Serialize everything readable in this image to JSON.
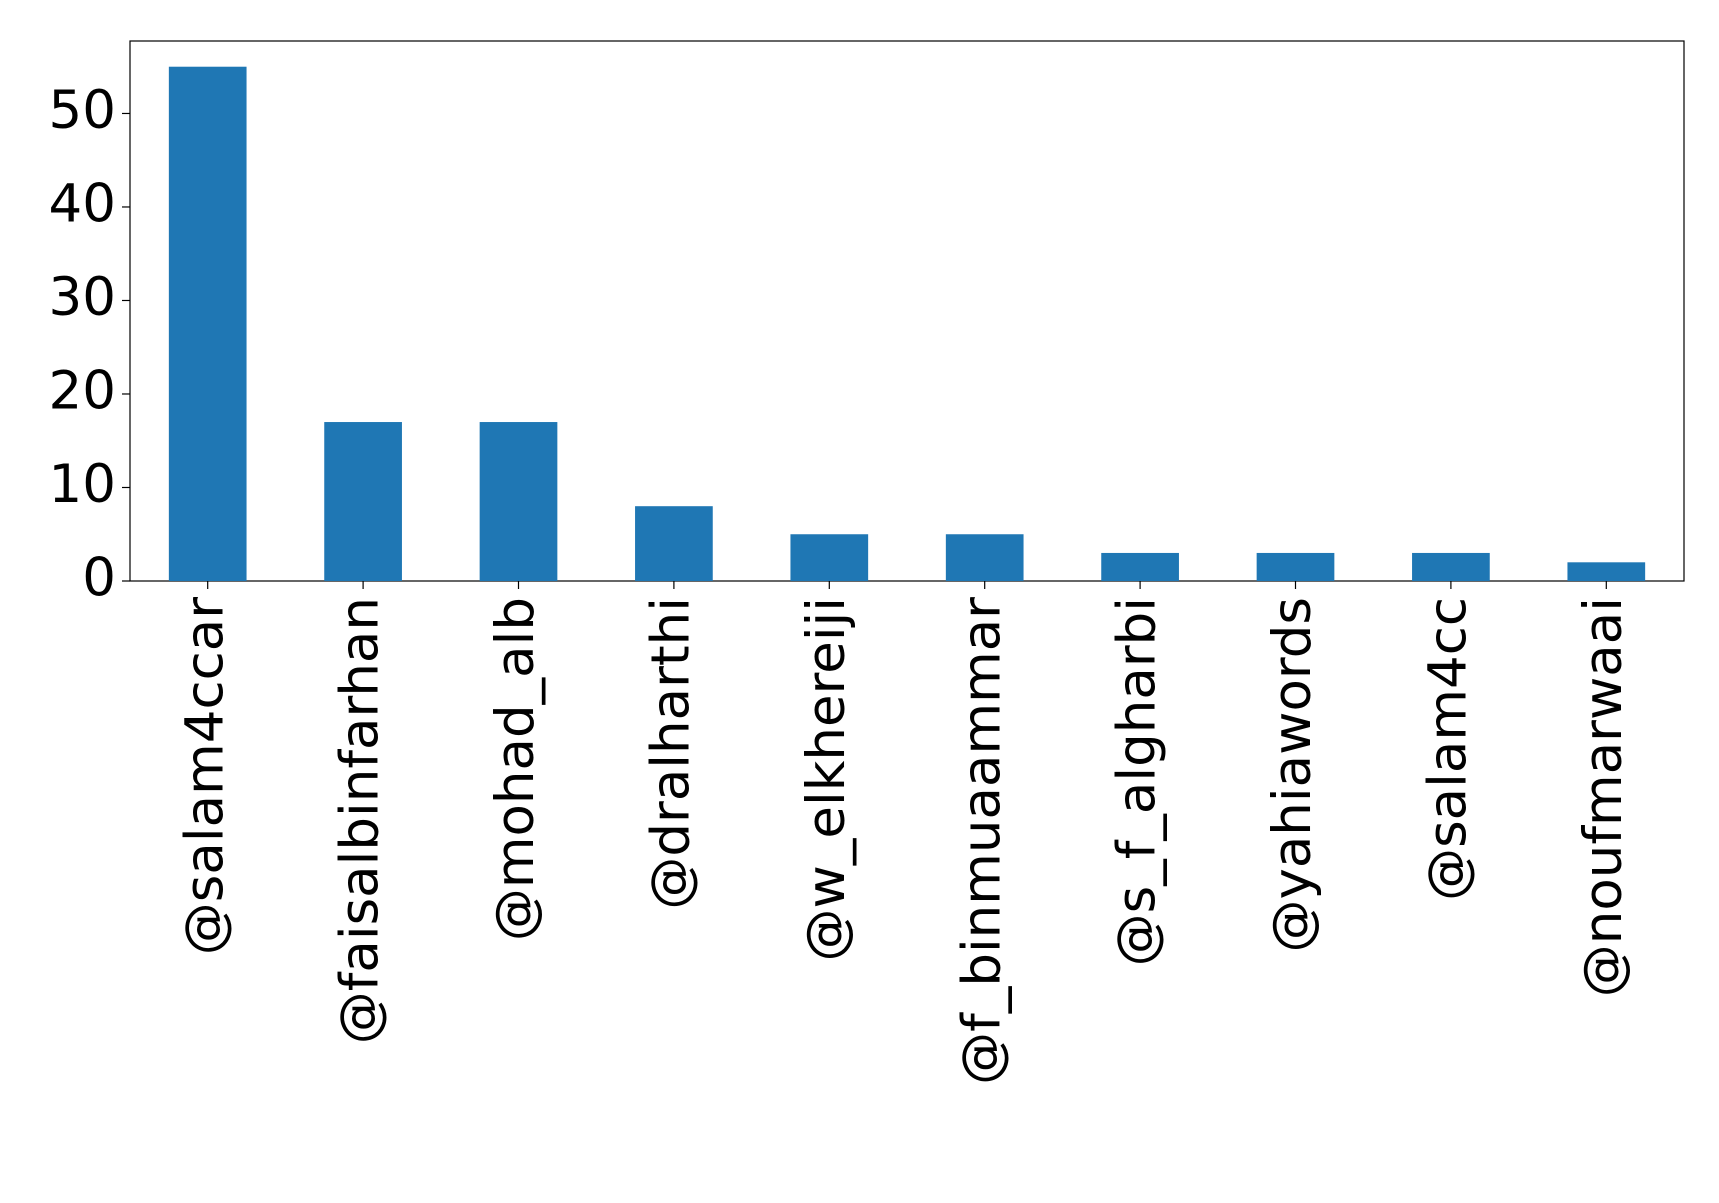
{
  "chart_data": {
    "type": "bar",
    "categories": [
      "@salam4ccar",
      "@faisalbinfarhan",
      "@mohad_alb",
      "@dralharthi",
      "@w_elkhereiji",
      "@f_binmuaammar",
      "@s_f_algharbi",
      "@yahiawords",
      "@salam4cc",
      "@noufmarwaai"
    ],
    "values": [
      55,
      17,
      17,
      8,
      5,
      5,
      3,
      3,
      3,
      2
    ],
    "color": "#1f77b4",
    "ylim": [
      0,
      57.75
    ],
    "yticks": [
      0,
      10,
      20,
      30,
      40,
      50
    ],
    "grid": false
  }
}
